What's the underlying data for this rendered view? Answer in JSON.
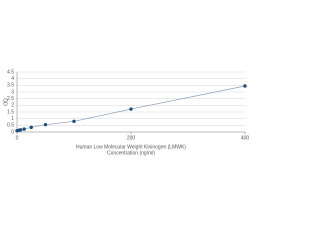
{
  "chart_data": {
    "type": "scatter-line",
    "title": "Human Low Molecular Weight Kininogen (LMWK)",
    "x_label": "Concentration (ng/ml)",
    "y_label": "OD",
    "x": [
      0,
      3.125,
      6.25,
      12.5,
      25,
      50,
      100,
      200,
      400
    ],
    "series": [
      {
        "color": "#1f4e79",
        "values": [
          0.1,
          0.13,
          0.16,
          0.22,
          0.35,
          0.55,
          0.8,
          1.72,
          3.45
        ]
      }
    ],
    "line_color": "#8a9bb8",
    "xlim": [
      0,
      400
    ],
    "xticks": [
      0,
      200,
      400
    ],
    "ylim": [
      0,
      4.5
    ],
    "yticks": [
      0,
      0.5,
      1,
      1.5,
      2,
      2.5,
      3,
      3.5,
      4,
      4.5
    ],
    "grid": true
  }
}
